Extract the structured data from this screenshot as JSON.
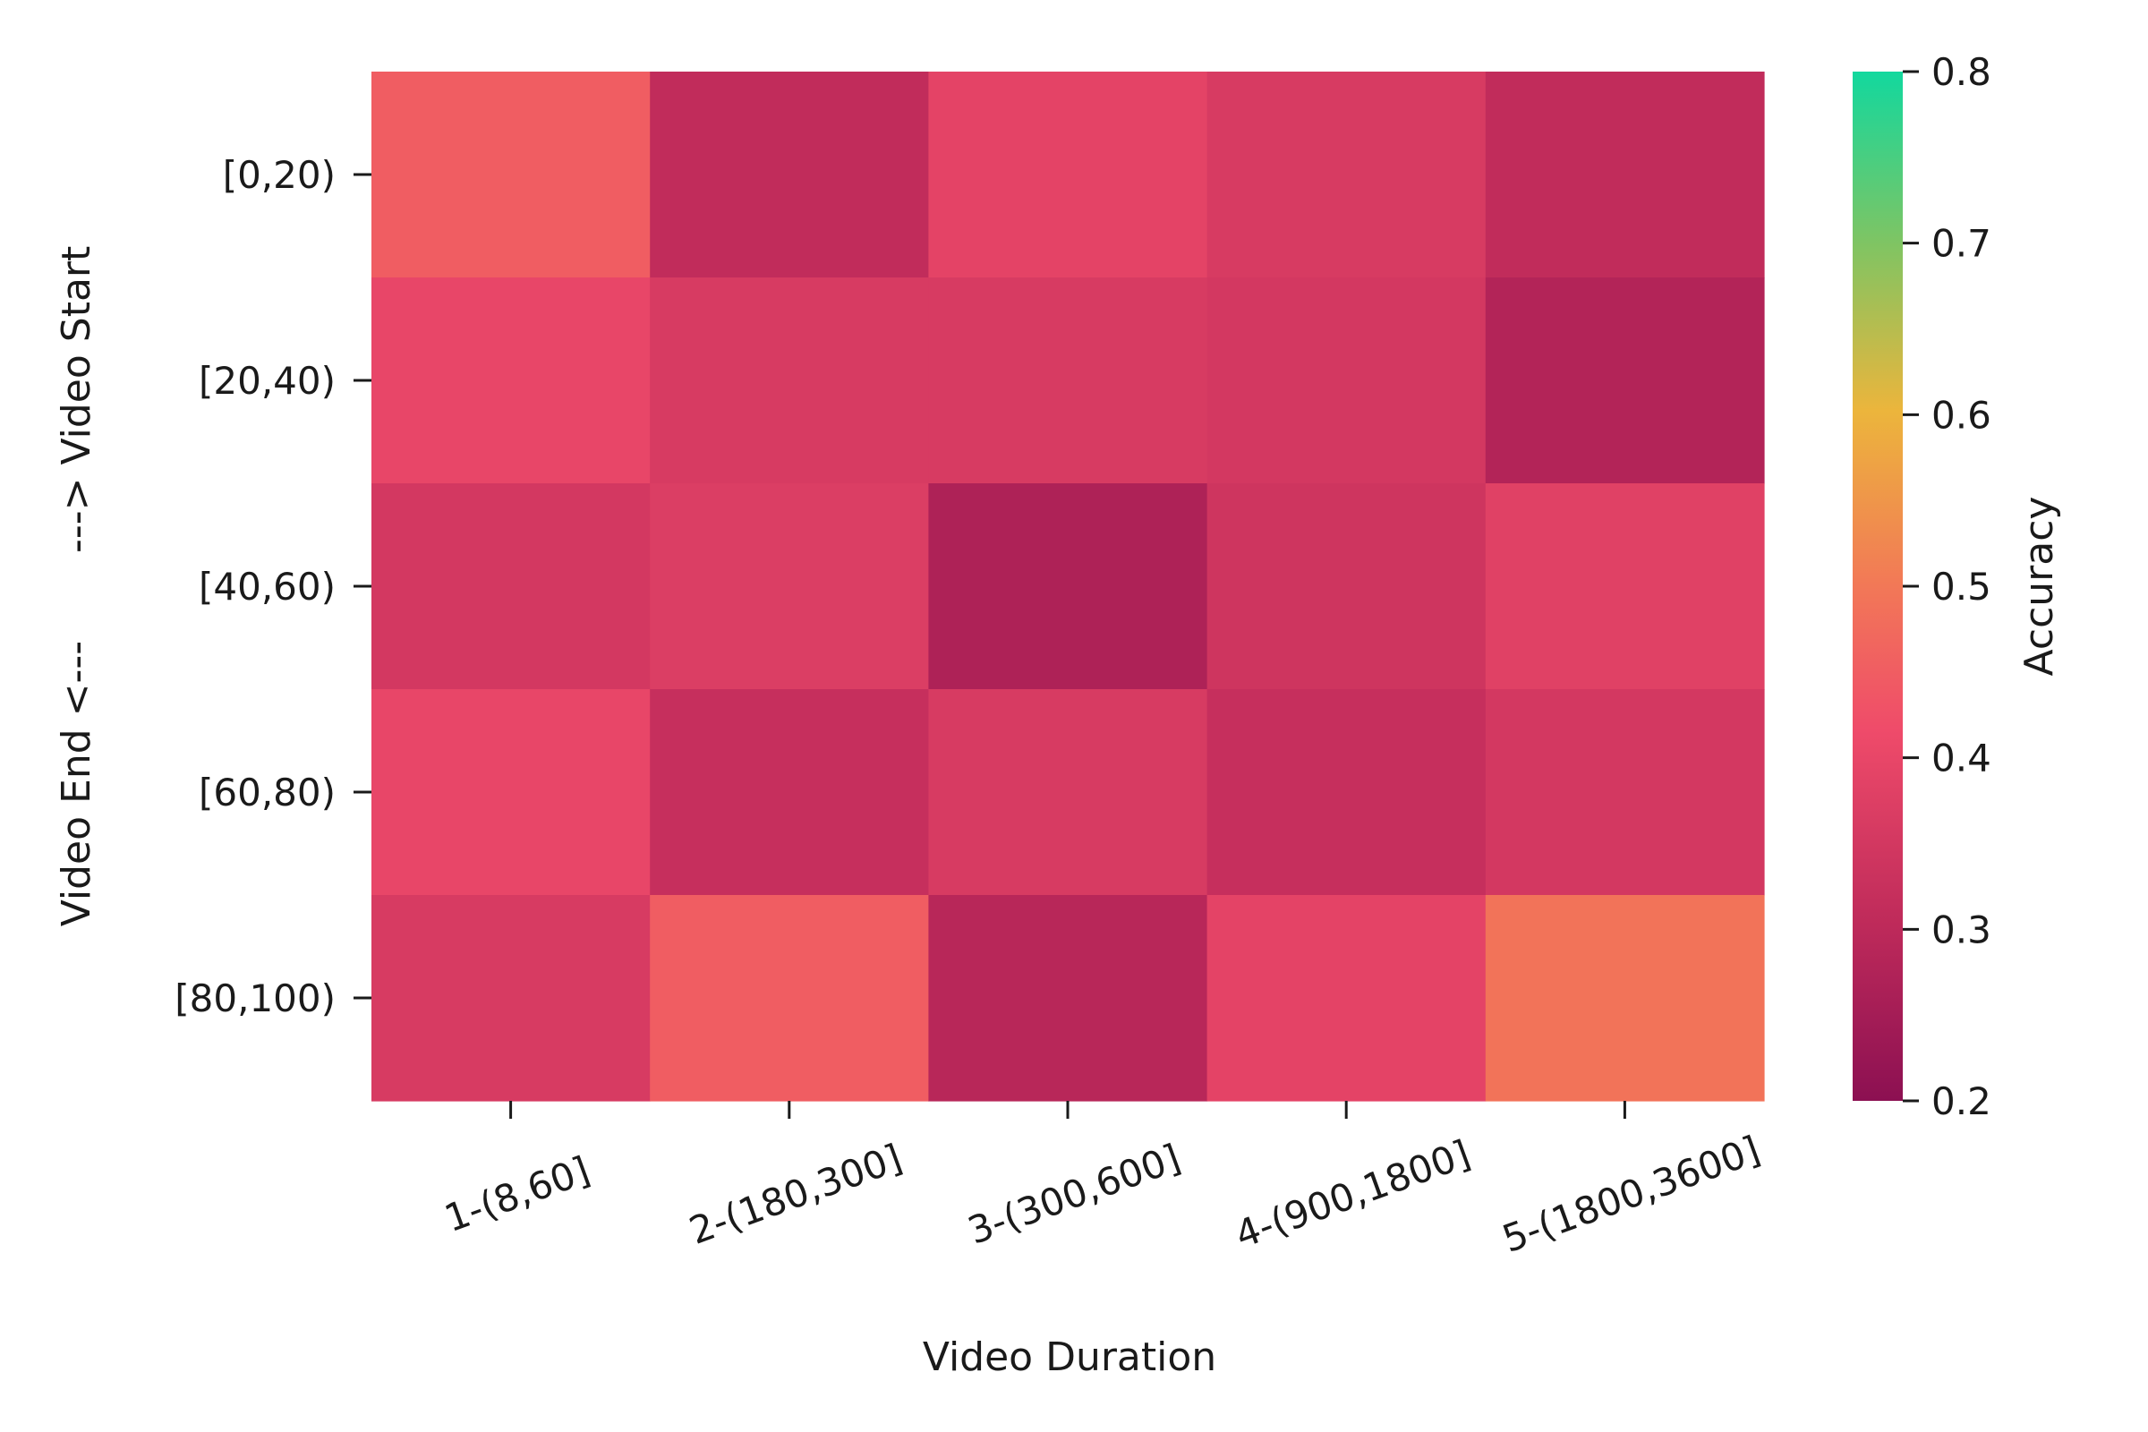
{
  "chart_data": {
    "type": "heatmap",
    "title": "",
    "xlabel": "Video Duration",
    "ylabel": "Video End <---       ---> Video Start",
    "x_categories": [
      "1-(8,60]",
      "2-(180,300]",
      "3-(300,600]",
      "4-(900,1800]",
      "5-(1800,3600]"
    ],
    "y_categories": [
      "[0,20)",
      "[20,40)",
      "[40,60)",
      "[60,80)",
      "[80,100)"
    ],
    "values": [
      [
        0.45,
        0.31,
        0.39,
        0.36,
        0.31
      ],
      [
        0.4,
        0.36,
        0.36,
        0.35,
        0.28
      ],
      [
        0.35,
        0.37,
        0.27,
        0.34,
        0.38
      ],
      [
        0.4,
        0.32,
        0.36,
        0.32,
        0.35
      ],
      [
        0.36,
        0.45,
        0.29,
        0.39,
        0.49
      ]
    ],
    "colorbar": {
      "label": "Accuracy",
      "vmin": 0.2,
      "vmax": 0.8,
      "ticks": [
        "0.2",
        "0.3",
        "0.4",
        "0.5",
        "0.6",
        "0.7",
        "0.8"
      ],
      "tick_values": [
        0.2,
        0.3,
        0.4,
        0.5,
        0.6,
        0.7,
        0.8
      ],
      "colors": [
        "#8c1052",
        "#be2a5a",
        "#ef4b6a",
        "#f27857",
        "#ecb53c",
        "#81c462",
        "#12d89e"
      ],
      "color_positions": [
        0.0,
        0.17,
        0.36,
        0.5,
        0.67,
        0.83,
        1.0
      ]
    },
    "grid": false,
    "legend": "colorbar-right"
  }
}
